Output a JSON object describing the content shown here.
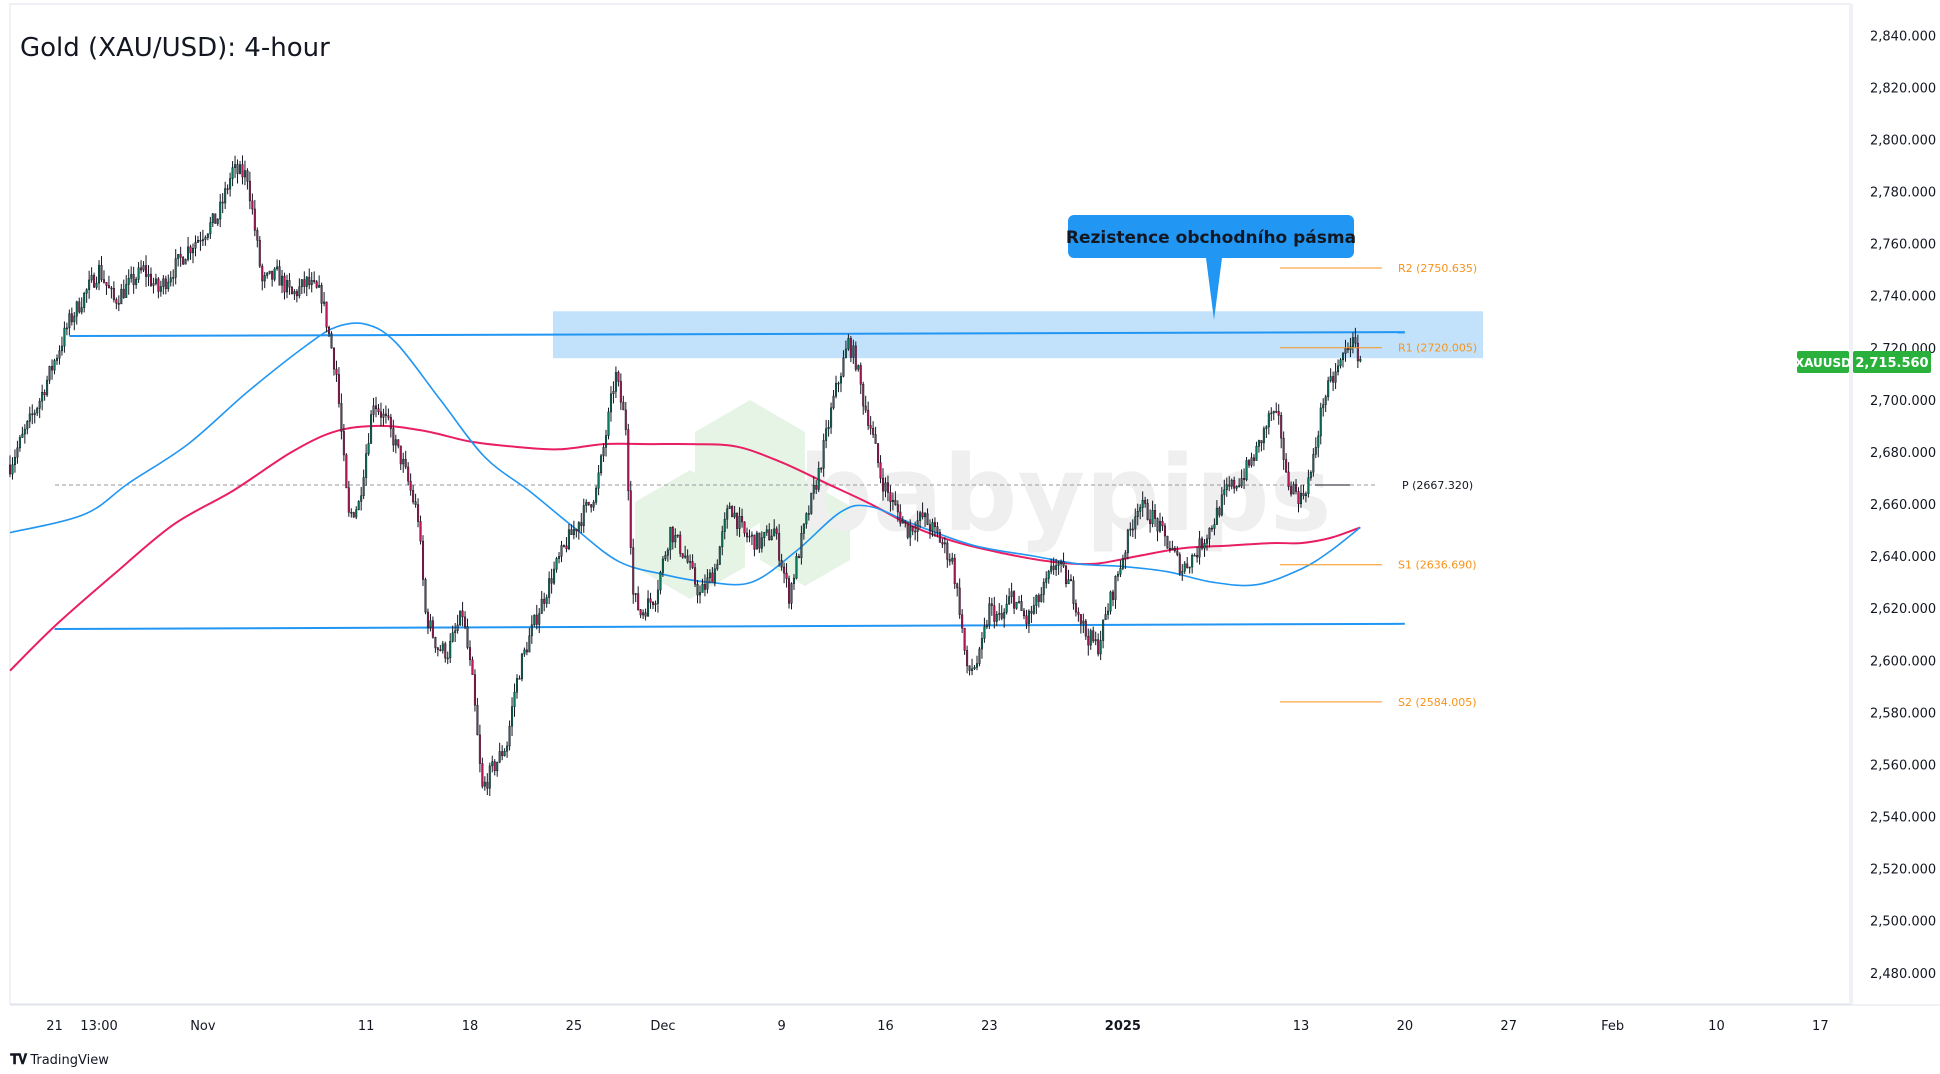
{
  "chart_data": {
    "type": "candlestick",
    "title": "Gold (XAU/USD): 4-hour",
    "symbol": "XAUUSD",
    "last_price": "2,715.560",
    "y_ticks": [
      2480,
      2500,
      2520,
      2540,
      2560,
      2580,
      2600,
      2620,
      2640,
      2660,
      2680,
      2700,
      2720,
      2740,
      2760,
      2780,
      2800,
      2820,
      2840
    ],
    "y_tick_labels": [
      "2,480.000",
      "2,500.000",
      "2,520.000",
      "2,540.000",
      "2,560.000",
      "2,580.000",
      "2,600.000",
      "2,620.000",
      "2,640.000",
      "2,660.000",
      "2,680.000",
      "2,700.000",
      "2,720.000",
      "2,740.000",
      "2,760.000",
      "2,780.000",
      "2,800.000",
      "2,820.000",
      "2,840.000"
    ],
    "ylim": [
      2468,
      2852
    ],
    "x_ticks": [
      "21",
      "13:00",
      "Nov",
      "11",
      "18",
      "25",
      "Dec",
      "9",
      "16",
      "23",
      "2025",
      "13",
      "20",
      "27",
      "Feb",
      "10",
      "17"
    ],
    "x_tick_days": [
      0,
      3,
      10,
      21,
      28,
      35,
      41,
      49,
      56,
      63,
      72,
      84,
      91,
      98,
      105,
      112,
      119
    ],
    "x_range_days": [
      -3,
      121
    ],
    "annotation": "Rezistence obchodního pásma",
    "resistance_zone": [
      2716,
      2734
    ],
    "trendlines": [
      {
        "name": "upper",
        "from": [
          1,
          2724.5
        ],
        "to": [
          91,
          2726
        ]
      },
      {
        "name": "lower",
        "from": [
          0,
          2612
        ],
        "to": [
          91,
          2614
        ]
      }
    ],
    "pivot_levels": [
      {
        "label": "R2 (2750.635)",
        "value": 2750.635,
        "color": "#f7931a"
      },
      {
        "label": "R1 (2720.005)",
        "value": 2720.005,
        "color": "#f7931a"
      },
      {
        "label": "P (2667.320)",
        "value": 2667.32,
        "color": "#131722"
      },
      {
        "label": "S1 (2636.690)",
        "value": 2636.69,
        "color": "#f7931a"
      },
      {
        "label": "S2 (2584.005)",
        "value": 2584.005,
        "color": "#f7931a"
      }
    ],
    "ma_blue": {
      "color": "#2196f3",
      "points": [
        [
          -3,
          2649
        ],
        [
          2,
          2656
        ],
        [
          5,
          2668
        ],
        [
          9,
          2683
        ],
        [
          13,
          2703
        ],
        [
          17,
          2721
        ],
        [
          19,
          2728
        ],
        [
          21,
          2729
        ],
        [
          23,
          2722
        ],
        [
          26,
          2700
        ],
        [
          29,
          2678
        ],
        [
          32,
          2665
        ],
        [
          35,
          2651
        ],
        [
          38,
          2638
        ],
        [
          41,
          2633
        ],
        [
          44,
          2630
        ],
        [
          47,
          2630
        ],
        [
          50,
          2642
        ],
        [
          53,
          2657
        ],
        [
          55,
          2659
        ],
        [
          58,
          2652
        ],
        [
          62,
          2644
        ],
        [
          66,
          2640
        ],
        [
          69,
          2637
        ],
        [
          72,
          2636
        ],
        [
          75,
          2634
        ],
        [
          78,
          2630
        ],
        [
          81,
          2629
        ],
        [
          84,
          2635
        ],
        [
          86,
          2642
        ],
        [
          88,
          2651
        ]
      ]
    },
    "ma_pink": {
      "color": "#e91e63",
      "points": [
        [
          -3,
          2596
        ],
        [
          0,
          2613
        ],
        [
          4,
          2633
        ],
        [
          8,
          2652
        ],
        [
          12,
          2665
        ],
        [
          16,
          2680
        ],
        [
          19,
          2688
        ],
        [
          22,
          2690
        ],
        [
          25,
          2688
        ],
        [
          28,
          2684
        ],
        [
          31,
          2682
        ],
        [
          34,
          2681
        ],
        [
          37,
          2683
        ],
        [
          40,
          2683
        ],
        [
          43,
          2683
        ],
        [
          46,
          2682
        ],
        [
          49,
          2676
        ],
        [
          52,
          2668
        ],
        [
          55,
          2660
        ],
        [
          58,
          2651
        ],
        [
          61,
          2645
        ],
        [
          64,
          2641
        ],
        [
          67,
          2638
        ],
        [
          70,
          2637
        ],
        [
          73,
          2640
        ],
        [
          76,
          2643
        ],
        [
          79,
          2644
        ],
        [
          82,
          2645
        ],
        [
          84,
          2645
        ],
        [
          86,
          2647
        ],
        [
          88,
          2651
        ]
      ]
    },
    "price_path": [
      [
        -3,
        2675
      ],
      [
        -1,
        2700
      ],
      [
        1,
        2730
      ],
      [
        3,
        2750
      ],
      [
        4,
        2738
      ],
      [
        6,
        2750
      ],
      [
        7,
        2742
      ],
      [
        9,
        2758
      ],
      [
        11,
        2770
      ],
      [
        12,
        2788
      ],
      [
        13,
        2786
      ],
      [
        14,
        2745
      ],
      [
        15,
        2748
      ],
      [
        16,
        2740
      ],
      [
        17,
        2745
      ],
      [
        18,
        2740
      ],
      [
        19,
        2710
      ],
      [
        19.8,
        2655
      ],
      [
        20.5,
        2660
      ],
      [
        21.5,
        2700
      ],
      [
        22.5,
        2690
      ],
      [
        23.5,
        2675
      ],
      [
        24.5,
        2655
      ],
      [
        25,
        2618
      ],
      [
        25.8,
        2605
      ],
      [
        26.5,
        2603
      ],
      [
        27.5,
        2618
      ],
      [
        28.2,
        2590
      ],
      [
        28.8,
        2550
      ],
      [
        29.5,
        2558
      ],
      [
        30.5,
        2568
      ],
      [
        31,
        2588
      ],
      [
        31.5,
        2600
      ],
      [
        32.5,
        2617
      ],
      [
        33.5,
        2632
      ],
      [
        34.5,
        2645
      ],
      [
        35.5,
        2655
      ],
      [
        36.5,
        2665
      ],
      [
        37.2,
        2688
      ],
      [
        37.8,
        2710
      ],
      [
        38.5,
        2690
      ],
      [
        39,
        2625
      ],
      [
        39.5,
        2618
      ],
      [
        40.5,
        2625
      ],
      [
        41.5,
        2650
      ],
      [
        42.5,
        2640
      ],
      [
        43.5,
        2625
      ],
      [
        44.5,
        2635
      ],
      [
        45.5,
        2660
      ],
      [
        46.5,
        2648
      ],
      [
        47.5,
        2645
      ],
      [
        48.5,
        2650
      ],
      [
        49.5,
        2625
      ],
      [
        50.5,
        2650
      ],
      [
        51.5,
        2672
      ],
      [
        52.5,
        2700
      ],
      [
        53.5,
        2722
      ],
      [
        54,
        2715
      ],
      [
        54.5,
        2700
      ],
      [
        55,
        2690
      ],
      [
        55.7,
        2670
      ],
      [
        56.5,
        2660
      ],
      [
        57.5,
        2650
      ],
      [
        58.5,
        2655
      ],
      [
        59.5,
        2648
      ],
      [
        60.5,
        2638
      ],
      [
        61,
        2620
      ],
      [
        61.5,
        2595
      ],
      [
        62.3,
        2600
      ],
      [
        63,
        2620
      ],
      [
        63.8,
        2615
      ],
      [
        64.5,
        2625
      ],
      [
        65.5,
        2615
      ],
      [
        66.5,
        2625
      ],
      [
        67.5,
        2638
      ],
      [
        68.5,
        2628
      ],
      [
        69.5,
        2610
      ],
      [
        70.3,
        2605
      ],
      [
        71,
        2620
      ],
      [
        72,
        2640
      ],
      [
        73,
        2660
      ],
      [
        74,
        2655
      ],
      [
        75,
        2645
      ],
      [
        76,
        2635
      ],
      [
        77,
        2642
      ],
      [
        78,
        2652
      ],
      [
        79,
        2665
      ],
      [
        80,
        2670
      ],
      [
        81,
        2680
      ],
      [
        82,
        2695
      ],
      [
        82.6,
        2690
      ],
      [
        83,
        2670
      ],
      [
        84,
        2662
      ],
      [
        84.7,
        2672
      ],
      [
        85.5,
        2700
      ],
      [
        86.5,
        2712
      ],
      [
        87.3,
        2723
      ],
      [
        88,
        2716
      ]
    ]
  },
  "footer": {
    "brand": "TradingView"
  },
  "watermark": "babypips"
}
